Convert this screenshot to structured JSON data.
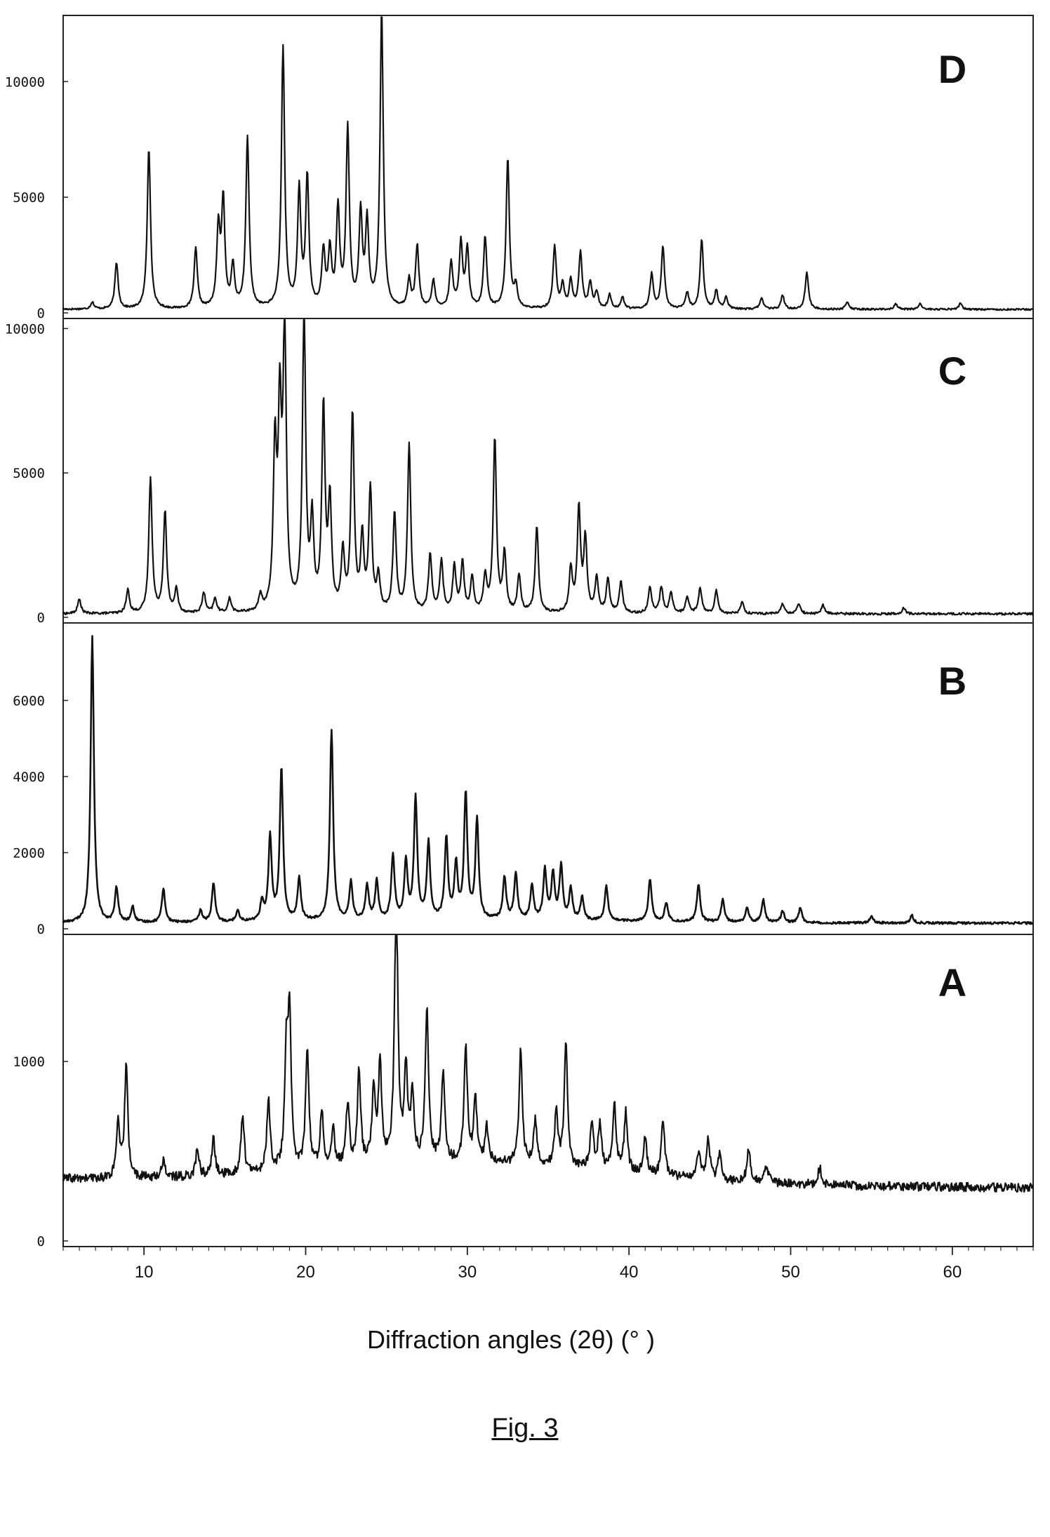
{
  "figure_caption": "Fig. 3",
  "chart_data": {
    "type": "line",
    "xlabel": "Diffraction angles (2θ) (° )",
    "xlim": [
      5,
      65
    ],
    "xticks": [
      10,
      20,
      30,
      40,
      50,
      60
    ],
    "panels": [
      {
        "name": "D",
        "ylim": [
          0,
          12800
        ],
        "yticks": [
          0,
          5000,
          10000
        ],
        "ytick_labels": [
          "0",
          "5000",
          "10000"
        ],
        "baseline": 150,
        "noise": 40,
        "peaks": [
          [
            6.8,
            300
          ],
          [
            8.3,
            2000
          ],
          [
            10.3,
            7000
          ],
          [
            13.2,
            2600
          ],
          [
            14.6,
            3400
          ],
          [
            14.9,
            4600
          ],
          [
            15.5,
            1800
          ],
          [
            16.4,
            7400
          ],
          [
            18.6,
            11300
          ],
          [
            19.6,
            5000
          ],
          [
            20.1,
            5600
          ],
          [
            21.1,
            2400
          ],
          [
            21.5,
            2400
          ],
          [
            22.0,
            4200
          ],
          [
            22.6,
            7700
          ],
          [
            23.4,
            4000
          ],
          [
            23.8,
            3600
          ],
          [
            24.7,
            12800
          ],
          [
            26.4,
            1200
          ],
          [
            26.9,
            2700
          ],
          [
            27.9,
            1200
          ],
          [
            29.0,
            2000
          ],
          [
            29.6,
            2800
          ],
          [
            30.0,
            2500
          ],
          [
            31.1,
            3100
          ],
          [
            32.5,
            6500
          ],
          [
            33.0,
            900
          ],
          [
            35.4,
            2700
          ],
          [
            35.9,
            1000
          ],
          [
            36.4,
            1200
          ],
          [
            37.0,
            2400
          ],
          [
            37.6,
            1100
          ],
          [
            38.0,
            700
          ],
          [
            38.8,
            600
          ],
          [
            39.6,
            500
          ],
          [
            41.4,
            1500
          ],
          [
            42.1,
            2700
          ],
          [
            43.6,
            700
          ],
          [
            44.5,
            3000
          ],
          [
            45.4,
            800
          ],
          [
            46.0,
            500
          ],
          [
            48.2,
            500
          ],
          [
            49.5,
            600
          ],
          [
            51.0,
            1600
          ],
          [
            53.5,
            300
          ],
          [
            56.5,
            250
          ],
          [
            58.0,
            250
          ],
          [
            60.5,
            250
          ]
        ]
      },
      {
        "name": "C",
        "ylim": [
          0,
          10300
        ],
        "yticks": [
          0,
          5000,
          10000
        ],
        "ytick_labels": [
          "0",
          "5000",
          "10000"
        ],
        "baseline": 120,
        "noise": 40,
        "peaks": [
          [
            6.0,
            500
          ],
          [
            9.0,
            800
          ],
          [
            10.4,
            4700
          ],
          [
            11.3,
            3500
          ],
          [
            12.0,
            800
          ],
          [
            13.7,
            700
          ],
          [
            14.4,
            500
          ],
          [
            15.3,
            500
          ],
          [
            17.2,
            500
          ],
          [
            18.1,
            5500
          ],
          [
            18.4,
            6500
          ],
          [
            18.7,
            9700
          ],
          [
            19.9,
            10300
          ],
          [
            20.4,
            3000
          ],
          [
            21.1,
            7000
          ],
          [
            21.5,
            3700
          ],
          [
            22.3,
            2000
          ],
          [
            22.9,
            6800
          ],
          [
            23.5,
            2500
          ],
          [
            24.0,
            4200
          ],
          [
            24.5,
            1200
          ],
          [
            25.5,
            3400
          ],
          [
            26.4,
            5800
          ],
          [
            27.7,
            2000
          ],
          [
            28.4,
            1800
          ],
          [
            29.2,
            1600
          ],
          [
            29.7,
            1700
          ],
          [
            30.3,
            1200
          ],
          [
            31.1,
            1200
          ],
          [
            31.7,
            6000
          ],
          [
            32.3,
            2000
          ],
          [
            33.2,
            1300
          ],
          [
            34.3,
            3000
          ],
          [
            36.4,
            1500
          ],
          [
            36.9,
            3600
          ],
          [
            37.3,
            2500
          ],
          [
            38.0,
            1200
          ],
          [
            38.7,
            1200
          ],
          [
            39.5,
            1100
          ],
          [
            41.3,
            900
          ],
          [
            42.0,
            900
          ],
          [
            42.6,
            700
          ],
          [
            43.6,
            600
          ],
          [
            44.4,
            900
          ],
          [
            45.4,
            800
          ],
          [
            47.0,
            400
          ],
          [
            49.5,
            350
          ],
          [
            50.5,
            350
          ],
          [
            52.0,
            300
          ],
          [
            57.0,
            200
          ]
        ]
      },
      {
        "name": "B",
        "ylim": [
          0,
          8000
        ],
        "yticks": [
          0,
          2000,
          4000,
          6000
        ],
        "ytick_labels": [
          "0",
          "2000",
          "4000",
          "6000"
        ],
        "baseline": 150,
        "noise": 30,
        "peaks": [
          [
            6.8,
            7500
          ],
          [
            8.3,
            900
          ],
          [
            9.3,
            400
          ],
          [
            11.2,
            900
          ],
          [
            13.5,
            300
          ],
          [
            14.3,
            1000
          ],
          [
            15.8,
            300
          ],
          [
            17.3,
            500
          ],
          [
            17.8,
            2200
          ],
          [
            18.5,
            4000
          ],
          [
            19.6,
            1100
          ],
          [
            21.6,
            5000
          ],
          [
            22.8,
            1000
          ],
          [
            23.8,
            900
          ],
          [
            24.4,
            1000
          ],
          [
            25.4,
            1700
          ],
          [
            26.2,
            1500
          ],
          [
            26.8,
            3200
          ],
          [
            27.6,
            2000
          ],
          [
            28.7,
            2100
          ],
          [
            29.3,
            1400
          ],
          [
            29.9,
            3300
          ],
          [
            30.6,
            2600
          ],
          [
            32.3,
            1100
          ],
          [
            33.0,
            1200
          ],
          [
            34.0,
            900
          ],
          [
            34.8,
            1300
          ],
          [
            35.3,
            1200
          ],
          [
            35.8,
            1400
          ],
          [
            36.4,
            800
          ],
          [
            37.1,
            600
          ],
          [
            38.6,
            900
          ],
          [
            41.3,
            1100
          ],
          [
            42.3,
            500
          ],
          [
            44.3,
            1000
          ],
          [
            45.8,
            600
          ],
          [
            47.3,
            400
          ],
          [
            48.3,
            600
          ],
          [
            49.5,
            300
          ],
          [
            50.6,
            400
          ],
          [
            55.0,
            200
          ],
          [
            57.5,
            200
          ]
        ]
      },
      {
        "name": "A",
        "ylim": [
          0,
          1700
        ],
        "yticks": [
          0,
          1000
        ],
        "ytick_labels": [
          "0",
          "1000"
        ],
        "baseline": 320,
        "noise": 25,
        "peaks": [
          [
            8.4,
            300
          ],
          [
            8.9,
            620
          ],
          [
            11.2,
            100
          ],
          [
            13.3,
            150
          ],
          [
            14.3,
            200
          ],
          [
            16.1,
            330
          ],
          [
            17.7,
            400
          ],
          [
            18.8,
            600
          ],
          [
            19.0,
            820
          ],
          [
            20.1,
            680
          ],
          [
            21.0,
            320
          ],
          [
            21.7,
            200
          ],
          [
            22.6,
            350
          ],
          [
            23.3,
            520
          ],
          [
            24.2,
            400
          ],
          [
            24.6,
            550
          ],
          [
            25.6,
            1550
          ],
          [
            26.2,
            500
          ],
          [
            26.6,
            380
          ],
          [
            27.5,
            850
          ],
          [
            28.5,
            500
          ],
          [
            29.9,
            640
          ],
          [
            30.5,
            350
          ],
          [
            31.2,
            200
          ],
          [
            33.3,
            650
          ],
          [
            34.2,
            250
          ],
          [
            35.5,
            300
          ],
          [
            36.1,
            700
          ],
          [
            37.7,
            250
          ],
          [
            38.2,
            260
          ],
          [
            39.1,
            380
          ],
          [
            39.8,
            330
          ],
          [
            41.0,
            200
          ],
          [
            42.1,
            320
          ],
          [
            44.3,
            150
          ],
          [
            44.9,
            220
          ],
          [
            45.6,
            150
          ],
          [
            47.4,
            180
          ],
          [
            48.5,
            100
          ],
          [
            51.8,
            100
          ]
        ]
      }
    ]
  }
}
